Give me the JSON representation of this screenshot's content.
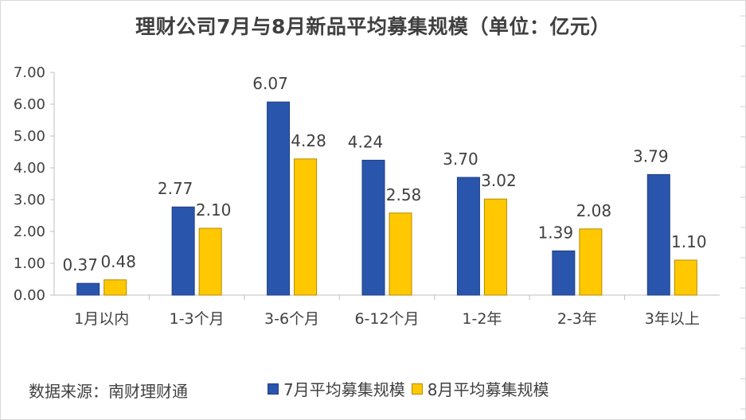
{
  "chart_data": {
    "type": "bar",
    "title": "理财公司7月与8月新品平均募集规模（单位：亿元）",
    "categories": [
      "1月以内",
      "1-3个月",
      "3-6个月",
      "6-12个月",
      "1-2年",
      "2-3年",
      "3年以上"
    ],
    "series": [
      {
        "name": "7月平均募集规模",
        "values": [
          0.37,
          2.77,
          6.07,
          4.24,
          3.7,
          1.39,
          3.79
        ],
        "labels": [
          "0.37",
          "2.77",
          "6.07",
          "4.24",
          "3.70",
          "1.39",
          "3.79"
        ],
        "color": "#2a55ad",
        "stroke": "#1f3f80"
      },
      {
        "name": "8月平均募集规模",
        "values": [
          0.48,
          2.1,
          4.28,
          2.58,
          3.02,
          2.08,
          1.1
        ],
        "labels": [
          "0.48",
          "2.10",
          "4.28",
          "2.58",
          "3.02",
          "2.08",
          "1.10"
        ],
        "color": "#ffc800",
        "stroke": "#b58a00"
      }
    ],
    "yticks": [
      "0.00",
      "1.00",
      "2.00",
      "3.00",
      "4.00",
      "5.00",
      "6.00",
      "7.00"
    ],
    "ylim": [
      0,
      7
    ],
    "xlabel": "",
    "ylabel": "",
    "legend_position": "bottom",
    "grid": false
  },
  "source_note": "数据来源：南财理财通"
}
